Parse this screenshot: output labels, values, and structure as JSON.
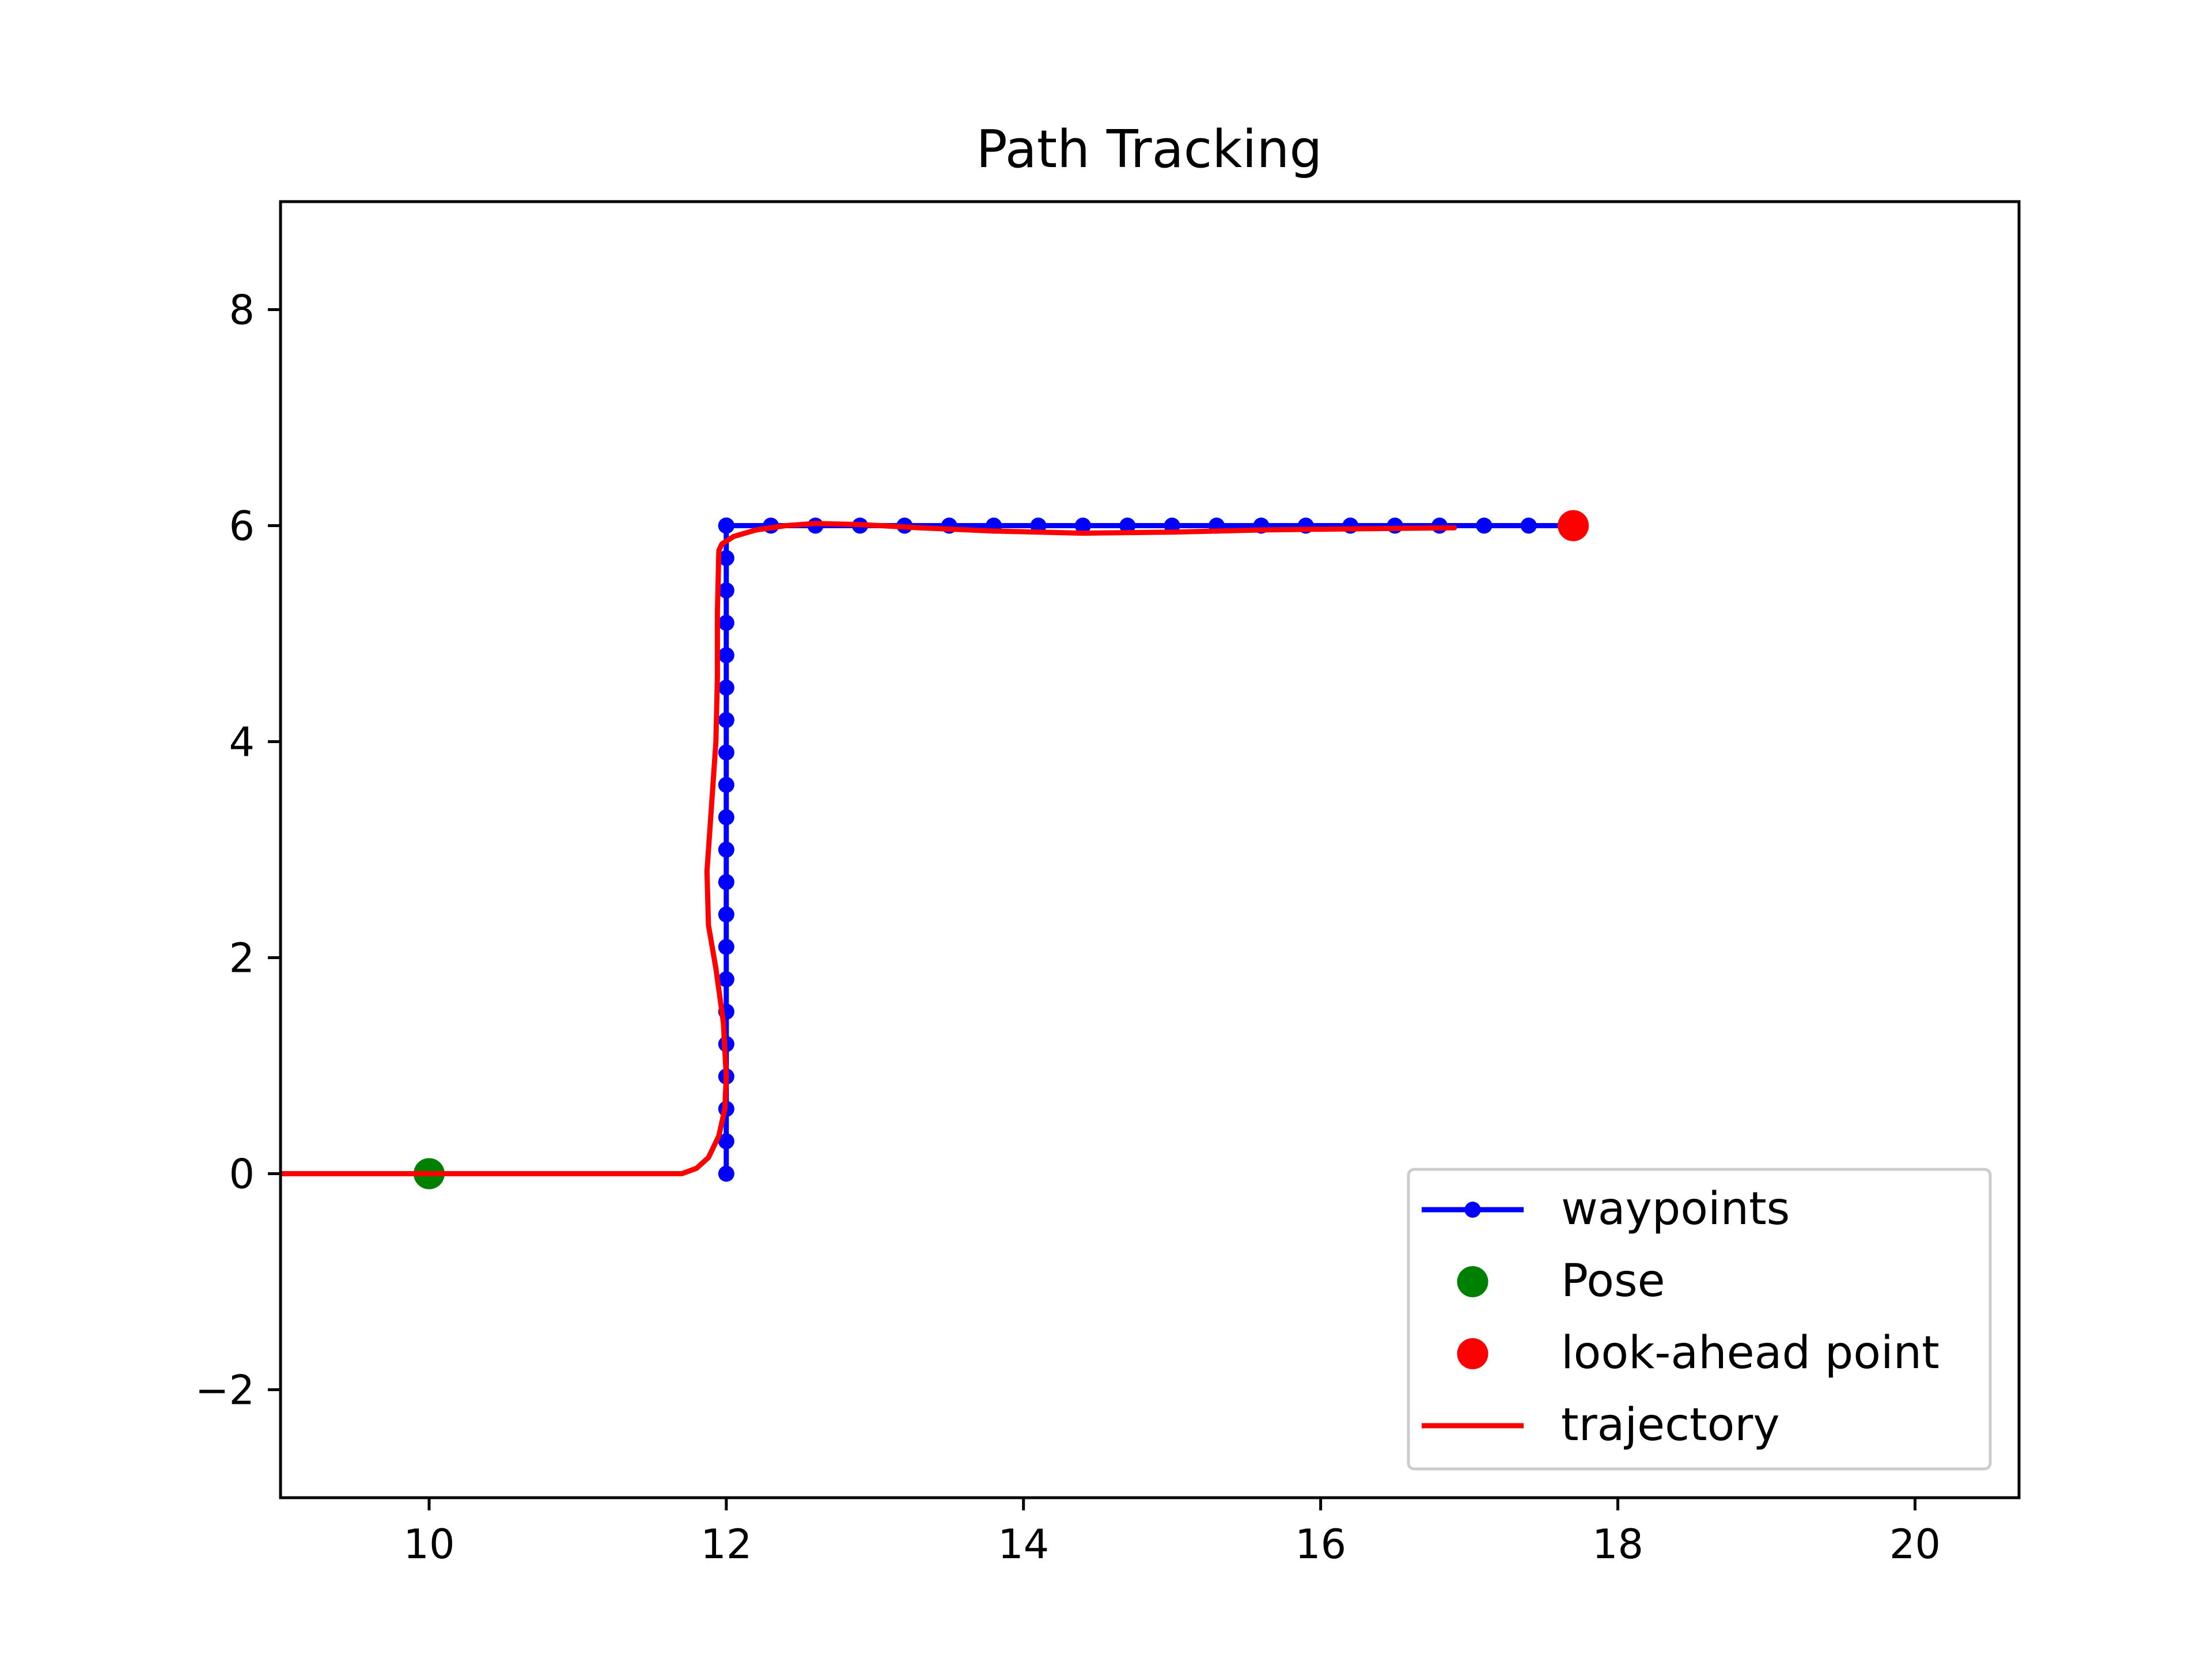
{
  "chart_data": {
    "type": "line",
    "title": "Path Tracking",
    "xlabel": "",
    "ylabel": "",
    "xlim": [
      9.0,
      20.7
    ],
    "ylim": [
      -3.0,
      9.0
    ],
    "xticks": [
      10,
      12,
      14,
      16,
      18,
      20
    ],
    "yticks": [
      -2,
      0,
      2,
      4,
      6,
      8
    ],
    "xtick_labels": [
      "10",
      "12",
      "14",
      "16",
      "18",
      "20"
    ],
    "ytick_labels": [
      "−2",
      "0",
      "2",
      "4",
      "6",
      "8"
    ],
    "grid": false,
    "legend_position": "lower-right",
    "series": [
      {
        "name": "waypoints",
        "kind": "line-with-markers",
        "color": "#0000ff",
        "x": [
          12,
          12,
          12,
          12,
          12,
          12,
          12,
          12,
          12,
          12,
          12,
          12,
          12,
          12,
          12,
          12,
          12,
          12,
          12,
          12,
          12,
          12,
          12,
          12,
          12,
          12,
          12.3,
          12.6,
          12.9,
          13.2,
          13.5,
          13.8,
          14.1,
          14.4,
          14.7,
          15.0,
          15.3,
          15.6,
          15.9,
          16.2,
          16.5,
          16.8,
          17.1,
          17.4,
          17.7
        ],
        "y": [
          0,
          0.3,
          0.6,
          0.9,
          1.2,
          1.5,
          1.8,
          2.1,
          2.4,
          2.7,
          3.0,
          3.3,
          3.6,
          3.9,
          4.2,
          4.5,
          4.8,
          5.1,
          5.4,
          5.7,
          6.0,
          6.0,
          6.0,
          6.0,
          6.0,
          6.0,
          6.0,
          6.0,
          6.0,
          6.0,
          6.0,
          6.0,
          6.0,
          6.0,
          6.0,
          6.0,
          6.0,
          6.0,
          6.0,
          6.0,
          6.0,
          6.0,
          6.0,
          6.0,
          6.0
        ]
      },
      {
        "name": "Pose",
        "kind": "marker",
        "color": "#008000",
        "x": [
          10.0
        ],
        "y": [
          0.0
        ]
      },
      {
        "name": "look-ahead point",
        "kind": "marker",
        "color": "#ff0000",
        "x": [
          17.7
        ],
        "y": [
          6.0
        ]
      },
      {
        "name": "trajectory",
        "kind": "line",
        "color": "#ff0000",
        "x": [
          9.0,
          10.0,
          11.0,
          11.7,
          11.8,
          11.88,
          11.95,
          11.99,
          12.0,
          11.98,
          11.93,
          11.88,
          11.87,
          11.9,
          11.93,
          11.94,
          11.94,
          11.95,
          11.97,
          12.05,
          12.2,
          12.4,
          12.6,
          12.9,
          13.3,
          13.8,
          14.4,
          15.0,
          15.6,
          16.2,
          16.9
        ],
        "y": [
          0.0,
          0.0,
          0.0,
          0.0,
          0.05,
          0.15,
          0.35,
          0.6,
          0.9,
          1.4,
          1.9,
          2.3,
          2.8,
          3.4,
          4.0,
          4.6,
          5.2,
          5.77,
          5.83,
          5.9,
          5.96,
          6.0,
          6.02,
          6.01,
          5.98,
          5.95,
          5.93,
          5.94,
          5.96,
          5.97,
          5.98
        ]
      }
    ]
  }
}
